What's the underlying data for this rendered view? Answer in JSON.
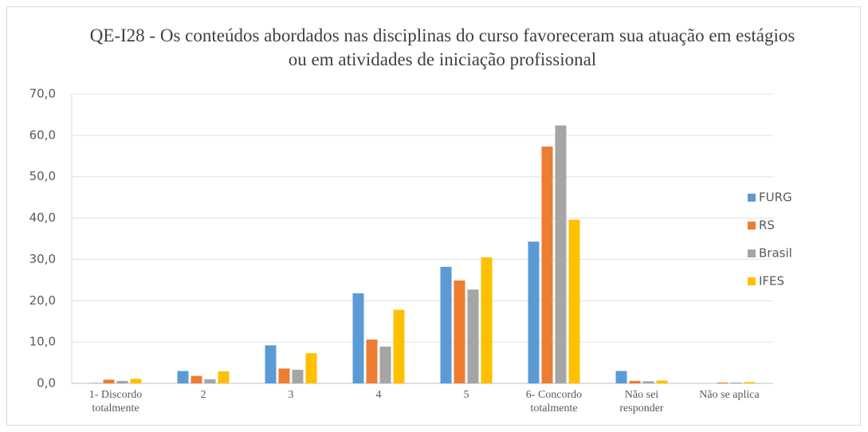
{
  "chart_data": {
    "type": "bar",
    "title": "QE-I28 - Os conteúdos abordados nas disciplinas do curso favoreceram sua atuação em estágios ou em atividades de iniciação profissional",
    "categories": [
      "1- Discordo totalmente",
      "2",
      "3",
      "4",
      "5",
      "6- Concordo totalmente",
      "Não sei responder",
      "Não se aplica"
    ],
    "series": [
      {
        "name": "FURG",
        "color": "#5b9bd5",
        "values": [
          0.1,
          3.0,
          9.2,
          21.8,
          28.2,
          34.3,
          3.0,
          0.0
        ]
      },
      {
        "name": "RS",
        "color": "#ed7d31",
        "values": [
          0.9,
          1.8,
          3.6,
          10.6,
          24.9,
          57.3,
          0.6,
          0.2
        ]
      },
      {
        "name": "Brasil",
        "color": "#a5a5a5",
        "values": [
          0.6,
          1.0,
          3.3,
          8.9,
          22.7,
          62.4,
          0.5,
          0.2
        ]
      },
      {
        "name": "IFES",
        "color": "#ffc000",
        "values": [
          1.1,
          2.9,
          7.3,
          17.8,
          30.5,
          39.6,
          0.7,
          0.3
        ]
      }
    ],
    "ylim": [
      0,
      70
    ],
    "yticks": [
      {
        "value": 0,
        "label": "0,0"
      },
      {
        "value": 10,
        "label": "10,0"
      },
      {
        "value": 20,
        "label": "20,0"
      },
      {
        "value": 30,
        "label": "30,0"
      },
      {
        "value": 40,
        "label": "40,0"
      },
      {
        "value": 50,
        "label": "50,0"
      },
      {
        "value": 60,
        "label": "60,0"
      },
      {
        "value": 70,
        "label": "70,0"
      }
    ],
    "grid": true,
    "legend": "right"
  }
}
